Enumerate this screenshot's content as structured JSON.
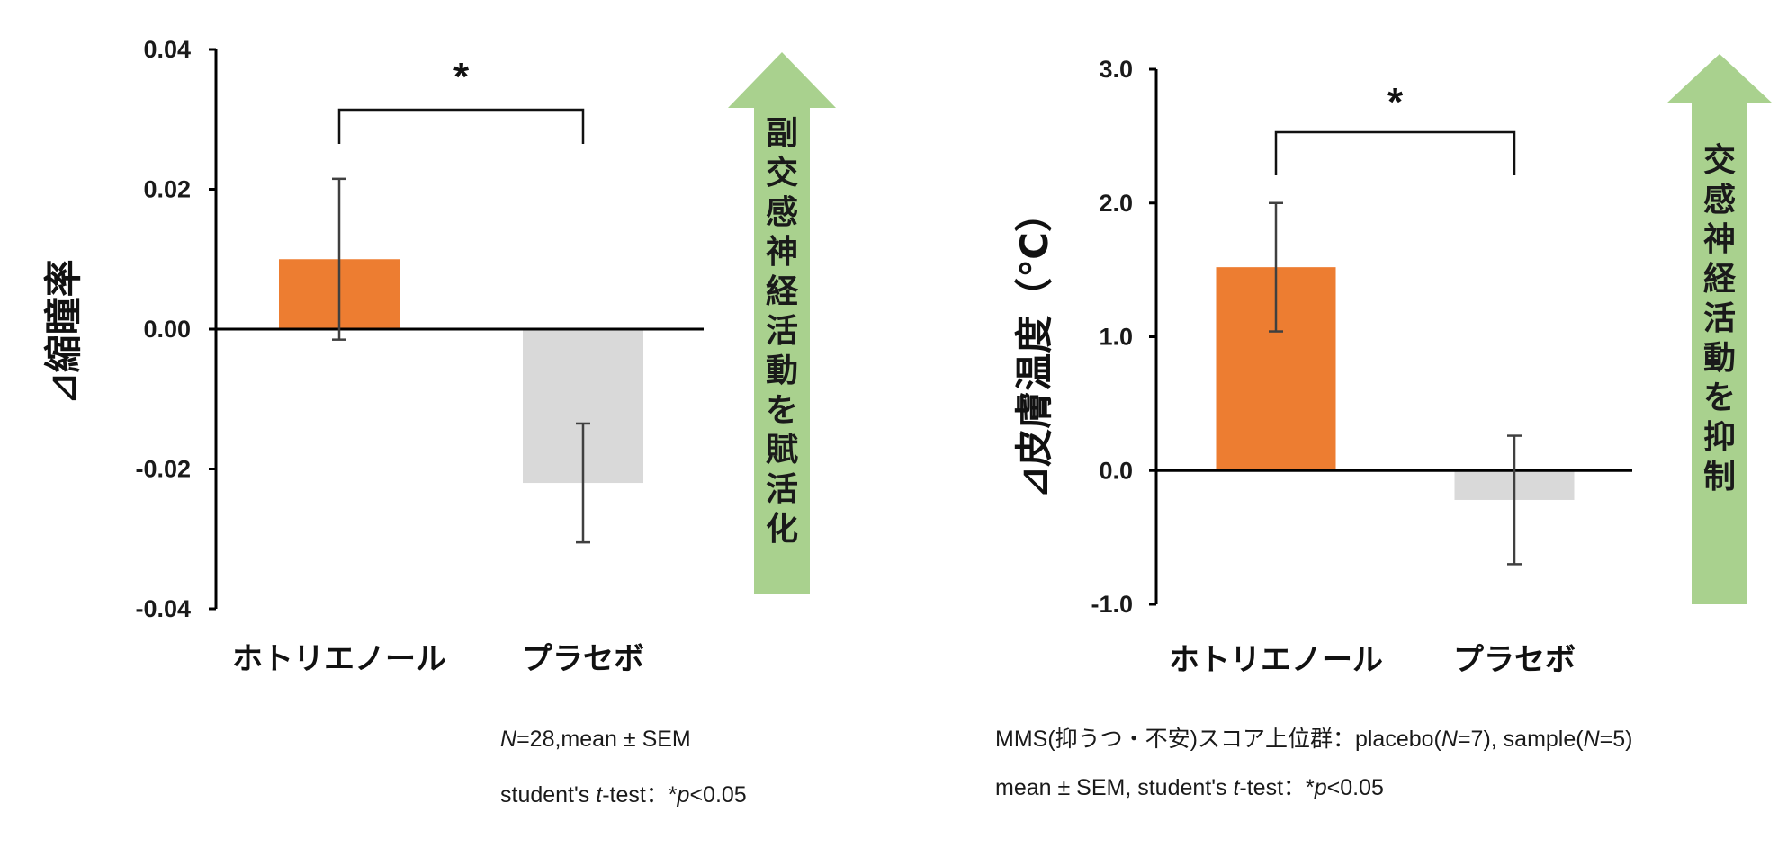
{
  "colors": {
    "treatment": "#ED7D31",
    "placebo": "#D9D9D9",
    "arrow": "#A9D18E",
    "axis": "#000000",
    "errorbar": "#404040"
  },
  "chart_data": [
    {
      "type": "bar",
      "categories": [
        "ホトリエノール",
        "プラセボ"
      ],
      "values": [
        0.01,
        -0.022
      ],
      "error": [
        0.0115,
        0.0085
      ],
      "ylabel": "⊿縮瞳率",
      "ylim": [
        -0.04,
        0.04
      ],
      "yticks": [
        0.04,
        0.02,
        0.0,
        -0.02,
        -0.04
      ],
      "ytick_labels": [
        "0.04",
        "0.02",
        "0.00",
        "-0.02",
        "-0.04"
      ],
      "significance": {
        "label": "*",
        "between": [
          0,
          1
        ]
      },
      "arrow_label": "副交感神経活動を賦活化",
      "arrow_direction": "up",
      "note": {
        "line1": {
          "n_symbol": "N",
          "rest": "=28,mean ± SEM"
        },
        "line2": {
          "pre": "student's ",
          "t_symbol": "t",
          "mid": "-test：*",
          "p_symbol": "p",
          "post": "<0.05"
        }
      }
    },
    {
      "type": "bar",
      "categories": [
        "ホトリエノール",
        "プラセボ"
      ],
      "values": [
        1.52,
        -0.22
      ],
      "error": [
        0.48,
        0.48
      ],
      "ylabel": "⊿皮膚温度（℃）",
      "ylim": [
        -1.0,
        3.0
      ],
      "yticks": [
        3.0,
        2.0,
        1.0,
        0.0,
        -1.0
      ],
      "ytick_labels": [
        "3.0",
        "2.0",
        "1.0",
        "0.0",
        "-1.0"
      ],
      "significance": {
        "label": "*",
        "between": [
          0,
          1
        ]
      },
      "arrow_label": "交感神経活動を抑制",
      "arrow_direction": "up",
      "note": {
        "line1": {
          "pre": "MMS(抑うつ・不安)スコア上位群：placebo(",
          "n1_symbol": "N",
          "n1_rest": "=7), sample(",
          "n2_symbol": "N",
          "n2_rest": "=5)"
        },
        "line2": {
          "pre": "mean ± SEM, student's ",
          "t_symbol": "t",
          "mid": "-test：*",
          "p_symbol": "p",
          "post": "<0.05"
        }
      }
    }
  ]
}
